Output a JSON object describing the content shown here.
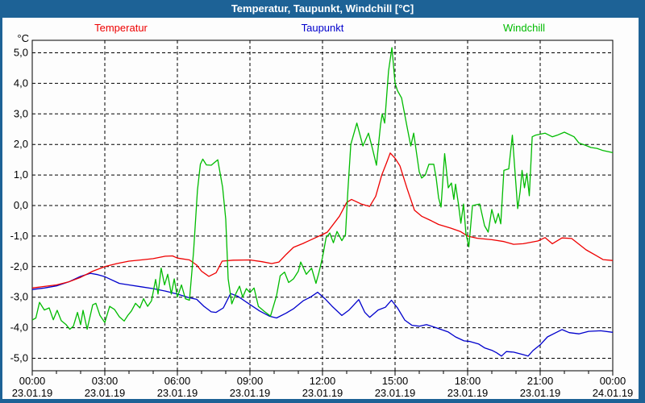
{
  "window": {
    "title": "Temperatur, Taupunkt, Windchill [°C]"
  },
  "legend": [
    {
      "label": "Temperatur",
      "color": "#ee0000"
    },
    {
      "label": "Taupunkt",
      "color": "#0000cc"
    },
    {
      "label": "Windchill",
      "color": "#00bb00"
    }
  ],
  "chart_data": {
    "type": "line",
    "title": "Temperatur, Taupunkt, Windchill [°C]",
    "xlabel": "",
    "ylabel": "°C",
    "ylim": [
      -5,
      5
    ],
    "xlim_hours": [
      0,
      24
    ],
    "grid": true,
    "legend_position": "top",
    "y_ticks": [
      {
        "value": 5,
        "label": "5,0"
      },
      {
        "value": 4,
        "label": "4,0"
      },
      {
        "value": 3,
        "label": "3,0"
      },
      {
        "value": 2,
        "label": "2,0"
      },
      {
        "value": 1,
        "label": "1,0"
      },
      {
        "value": 0,
        "label": "0,0"
      },
      {
        "value": -1,
        "label": "-1,0"
      },
      {
        "value": -2,
        "label": "-2,0"
      },
      {
        "value": -3,
        "label": "-3,0"
      },
      {
        "value": -4,
        "label": "-4,0"
      },
      {
        "value": -5,
        "label": "-5,0"
      }
    ],
    "x_ticks": [
      {
        "hour": 0,
        "time": "00:00",
        "date": "23.01.19"
      },
      {
        "hour": 3,
        "time": "03:00",
        "date": "23.01.19"
      },
      {
        "hour": 6,
        "time": "06:00",
        "date": "23.01.19"
      },
      {
        "hour": 9,
        "time": "09:00",
        "date": "23.01.19"
      },
      {
        "hour": 12,
        "time": "12:00",
        "date": "23.01.19"
      },
      {
        "hour": 15,
        "time": "15:00",
        "date": "23.01.19"
      },
      {
        "hour": 18,
        "time": "18:00",
        "date": "23.01.19"
      },
      {
        "hour": 21,
        "time": "21:00",
        "date": "23.01.19"
      },
      {
        "hour": 24,
        "time": "00:00",
        "date": "24.01.19"
      }
    ],
    "series": [
      {
        "name": "Temperatur",
        "color": "#ee0000",
        "points": [
          [
            0,
            -2.7
          ],
          [
            0.5,
            -2.65
          ],
          [
            1,
            -2.6
          ],
          [
            1.5,
            -2.5
          ],
          [
            2,
            -2.35
          ],
          [
            2.5,
            -2.15
          ],
          [
            3,
            -2.0
          ],
          [
            3.5,
            -1.9
          ],
          [
            4,
            -1.82
          ],
          [
            4.5,
            -1.78
          ],
          [
            5,
            -1.74
          ],
          [
            5.5,
            -1.66
          ],
          [
            5.8,
            -1.65
          ],
          [
            6,
            -1.72
          ],
          [
            6.5,
            -1.78
          ],
          [
            6.8,
            -1.95
          ],
          [
            7,
            -2.15
          ],
          [
            7.3,
            -2.32
          ],
          [
            7.6,
            -2.2
          ],
          [
            7.85,
            -1.82
          ],
          [
            8.3,
            -1.79
          ],
          [
            9,
            -1.78
          ],
          [
            9.5,
            -1.84
          ],
          [
            9.9,
            -1.9
          ],
          [
            10.2,
            -1.85
          ],
          [
            10.5,
            -1.6
          ],
          [
            10.8,
            -1.37
          ],
          [
            11.2,
            -1.24
          ],
          [
            11.5,
            -1.13
          ],
          [
            11.8,
            -1.02
          ],
          [
            12,
            -0.95
          ],
          [
            12.2,
            -0.87
          ],
          [
            12.7,
            -0.35
          ],
          [
            13,
            0.1
          ],
          [
            13.2,
            0.2
          ],
          [
            13.6,
            0.05
          ],
          [
            13.95,
            -0.03
          ],
          [
            14.2,
            0.3
          ],
          [
            14.45,
            1.0
          ],
          [
            14.65,
            1.4
          ],
          [
            14.8,
            1.72
          ],
          [
            15,
            1.55
          ],
          [
            15.2,
            1.3
          ],
          [
            15.5,
            0.55
          ],
          [
            15.8,
            -0.15
          ],
          [
            16.1,
            -0.35
          ],
          [
            16.5,
            -0.5
          ],
          [
            16.8,
            -0.62
          ],
          [
            17.3,
            -0.74
          ],
          [
            17.7,
            -0.85
          ],
          [
            18,
            -1.0
          ],
          [
            18.4,
            -1.07
          ],
          [
            19,
            -1.12
          ],
          [
            19.5,
            -1.18
          ],
          [
            19.9,
            -1.27
          ],
          [
            20.3,
            -1.25
          ],
          [
            20.9,
            -1.16
          ],
          [
            21.2,
            -1.05
          ],
          [
            21.5,
            -1.25
          ],
          [
            21.9,
            -1.06
          ],
          [
            22.3,
            -1.08
          ],
          [
            22.9,
            -1.45
          ],
          [
            23.3,
            -1.63
          ],
          [
            23.6,
            -1.77
          ],
          [
            24,
            -1.8
          ]
        ]
      },
      {
        "name": "Taupunkt",
        "color": "#0000cc",
        "points": [
          [
            0,
            -2.75
          ],
          [
            0.5,
            -2.7
          ],
          [
            1,
            -2.63
          ],
          [
            1.5,
            -2.5
          ],
          [
            2,
            -2.32
          ],
          [
            2.4,
            -2.22
          ],
          [
            2.7,
            -2.26
          ],
          [
            3,
            -2.33
          ],
          [
            3.6,
            -2.55
          ],
          [
            4,
            -2.6
          ],
          [
            4.5,
            -2.66
          ],
          [
            5,
            -2.72
          ],
          [
            5.5,
            -2.8
          ],
          [
            6,
            -2.9
          ],
          [
            6.5,
            -3.02
          ],
          [
            6.8,
            -3.07
          ],
          [
            7.1,
            -3.3
          ],
          [
            7.4,
            -3.48
          ],
          [
            7.6,
            -3.5
          ],
          [
            7.9,
            -3.35
          ],
          [
            8.2,
            -2.88
          ],
          [
            8.5,
            -2.97
          ],
          [
            9,
            -3.24
          ],
          [
            9.4,
            -3.45
          ],
          [
            9.8,
            -3.62
          ],
          [
            10.1,
            -3.68
          ],
          [
            10.5,
            -3.52
          ],
          [
            10.8,
            -3.38
          ],
          [
            11.2,
            -3.12
          ],
          [
            11.5,
            -3.0
          ],
          [
            11.8,
            -2.84
          ],
          [
            12.1,
            -3.05
          ],
          [
            12.4,
            -3.3
          ],
          [
            12.8,
            -3.6
          ],
          [
            13.1,
            -3.42
          ],
          [
            13.5,
            -3.08
          ],
          [
            13.75,
            -3.5
          ],
          [
            13.95,
            -3.66
          ],
          [
            14.3,
            -3.42
          ],
          [
            14.6,
            -3.33
          ],
          [
            14.85,
            -3.1
          ],
          [
            15.1,
            -3.35
          ],
          [
            15.4,
            -3.75
          ],
          [
            15.7,
            -3.92
          ],
          [
            16,
            -3.95
          ],
          [
            16.3,
            -3.9
          ],
          [
            16.7,
            -4.0
          ],
          [
            17.2,
            -4.14
          ],
          [
            17.5,
            -4.3
          ],
          [
            17.85,
            -4.43
          ],
          [
            18.1,
            -4.45
          ],
          [
            18.45,
            -4.53
          ],
          [
            18.7,
            -4.66
          ],
          [
            19,
            -4.74
          ],
          [
            19.2,
            -4.82
          ],
          [
            19.4,
            -4.93
          ],
          [
            19.6,
            -4.78
          ],
          [
            19.9,
            -4.8
          ],
          [
            20.3,
            -4.88
          ],
          [
            20.5,
            -4.93
          ],
          [
            20.7,
            -4.75
          ],
          [
            21,
            -4.56
          ],
          [
            21.3,
            -4.3
          ],
          [
            21.6,
            -4.18
          ],
          [
            21.9,
            -4.06
          ],
          [
            22.2,
            -4.16
          ],
          [
            22.6,
            -4.2
          ],
          [
            23,
            -4.12
          ],
          [
            23.5,
            -4.1
          ],
          [
            24,
            -4.15
          ]
        ]
      },
      {
        "name": "Windchill",
        "color": "#00bb00",
        "points": [
          [
            0,
            -3.75
          ],
          [
            0.15,
            -3.68
          ],
          [
            0.3,
            -3.17
          ],
          [
            0.5,
            -3.42
          ],
          [
            0.7,
            -3.35
          ],
          [
            0.87,
            -3.74
          ],
          [
            1.03,
            -3.43
          ],
          [
            1.2,
            -3.77
          ],
          [
            1.4,
            -3.9
          ],
          [
            1.55,
            -4.05
          ],
          [
            1.7,
            -3.95
          ],
          [
            1.87,
            -3.5
          ],
          [
            2,
            -3.9
          ],
          [
            2.1,
            -3.43
          ],
          [
            2.27,
            -4.05
          ],
          [
            2.5,
            -3.25
          ],
          [
            2.63,
            -3.2
          ],
          [
            2.8,
            -3.6
          ],
          [
            3,
            -3.83
          ],
          [
            3.2,
            -3.3
          ],
          [
            3.4,
            -3.4
          ],
          [
            3.6,
            -3.64
          ],
          [
            3.8,
            -3.78
          ],
          [
            3.95,
            -3.6
          ],
          [
            4.1,
            -3.45
          ],
          [
            4.27,
            -3.2
          ],
          [
            4.45,
            -3.35
          ],
          [
            4.6,
            -3.05
          ],
          [
            4.77,
            -3.3
          ],
          [
            4.93,
            -3.12
          ],
          [
            5.1,
            -2.42
          ],
          [
            5.2,
            -2.9
          ],
          [
            5.33,
            -2.05
          ],
          [
            5.47,
            -2.6
          ],
          [
            5.6,
            -2.25
          ],
          [
            5.75,
            -2.9
          ],
          [
            5.87,
            -2.4
          ],
          [
            6,
            -3.0
          ],
          [
            6.17,
            -2.6
          ],
          [
            6.33,
            -3.05
          ],
          [
            6.5,
            -3.1
          ],
          [
            6.67,
            -1.5
          ],
          [
            6.83,
            0.5
          ],
          [
            6.95,
            1.35
          ],
          [
            7.05,
            1.52
          ],
          [
            7.2,
            1.33
          ],
          [
            7.4,
            1.32
          ],
          [
            7.55,
            1.42
          ],
          [
            7.67,
            1.5
          ],
          [
            7.78,
            1.0
          ],
          [
            7.87,
            0.6
          ],
          [
            8,
            -0.45
          ],
          [
            8.1,
            -2.4
          ],
          [
            8.25,
            -3.22
          ],
          [
            8.42,
            -2.88
          ],
          [
            8.57,
            -2.64
          ],
          [
            8.7,
            -3.0
          ],
          [
            8.85,
            -2.72
          ],
          [
            9,
            -2.85
          ],
          [
            9.17,
            -2.7
          ],
          [
            9.35,
            -3.3
          ],
          [
            9.6,
            -3.47
          ],
          [
            9.85,
            -3.62
          ],
          [
            10.1,
            -2.95
          ],
          [
            10.25,
            -2.3
          ],
          [
            10.43,
            -2.18
          ],
          [
            10.6,
            -2.52
          ],
          [
            10.8,
            -2.4
          ],
          [
            11,
            -2.15
          ],
          [
            11.1,
            -1.85
          ],
          [
            11.33,
            -2.25
          ],
          [
            11.55,
            -2.05
          ],
          [
            11.73,
            -2.55
          ],
          [
            11.85,
            -2.2
          ],
          [
            12,
            -1.7
          ],
          [
            12.15,
            -1.05
          ],
          [
            12.3,
            -0.9
          ],
          [
            12.45,
            -1.22
          ],
          [
            12.6,
            -0.85
          ],
          [
            12.8,
            -1.15
          ],
          [
            12.95,
            -0.95
          ],
          [
            13.05,
            0.5
          ],
          [
            13.17,
            2.0
          ],
          [
            13.42,
            2.7
          ],
          [
            13.67,
            1.95
          ],
          [
            13.9,
            2.37
          ],
          [
            14.07,
            1.85
          ],
          [
            14.23,
            1.32
          ],
          [
            14.4,
            2.65
          ],
          [
            14.47,
            3.0
          ],
          [
            14.57,
            2.7
          ],
          [
            14.73,
            4.4
          ],
          [
            14.87,
            5.17
          ],
          [
            15,
            4.0
          ],
          [
            15.1,
            3.76
          ],
          [
            15.27,
            3.52
          ],
          [
            15.5,
            2.56
          ],
          [
            15.65,
            1.95
          ],
          [
            15.77,
            2.37
          ],
          [
            16,
            1.1
          ],
          [
            16.1,
            0.9
          ],
          [
            16.25,
            1.0
          ],
          [
            16.4,
            1.35
          ],
          [
            16.6,
            1.35
          ],
          [
            16.7,
            0.9
          ],
          [
            16.8,
            0.25
          ],
          [
            16.9,
            -0.05
          ],
          [
            17.05,
            1.7
          ],
          [
            17.2,
            0.58
          ],
          [
            17.33,
            0.74
          ],
          [
            17.43,
            0.2
          ],
          [
            17.5,
            0.7
          ],
          [
            17.62,
            0.05
          ],
          [
            17.72,
            -0.58
          ],
          [
            17.83,
            0.05
          ],
          [
            17.93,
            -0.92
          ],
          [
            18.05,
            -1.35
          ],
          [
            18.2,
            0.0
          ],
          [
            18.5,
            0.05
          ],
          [
            18.7,
            -0.66
          ],
          [
            18.85,
            -0.87
          ],
          [
            19,
            -0.13
          ],
          [
            19.15,
            -0.58
          ],
          [
            19.27,
            -0.26
          ],
          [
            19.37,
            -0.6
          ],
          [
            19.5,
            1.15
          ],
          [
            19.7,
            1.2
          ],
          [
            19.85,
            2.3
          ],
          [
            19.95,
            1.2
          ],
          [
            20.07,
            -0.1
          ],
          [
            20.17,
            0.45
          ],
          [
            20.25,
            1.15
          ],
          [
            20.35,
            0.58
          ],
          [
            20.45,
            1.05
          ],
          [
            20.55,
            0.32
          ],
          [
            20.67,
            2.25
          ],
          [
            20.8,
            2.3
          ],
          [
            21.2,
            2.37
          ],
          [
            21.5,
            2.25
          ],
          [
            21.7,
            2.3
          ],
          [
            22,
            2.4
          ],
          [
            22.4,
            2.25
          ],
          [
            22.6,
            2.05
          ],
          [
            22.85,
            1.98
          ],
          [
            23.1,
            1.9
          ],
          [
            23.35,
            1.87
          ],
          [
            23.6,
            1.8
          ],
          [
            24,
            1.73
          ]
        ]
      }
    ]
  }
}
